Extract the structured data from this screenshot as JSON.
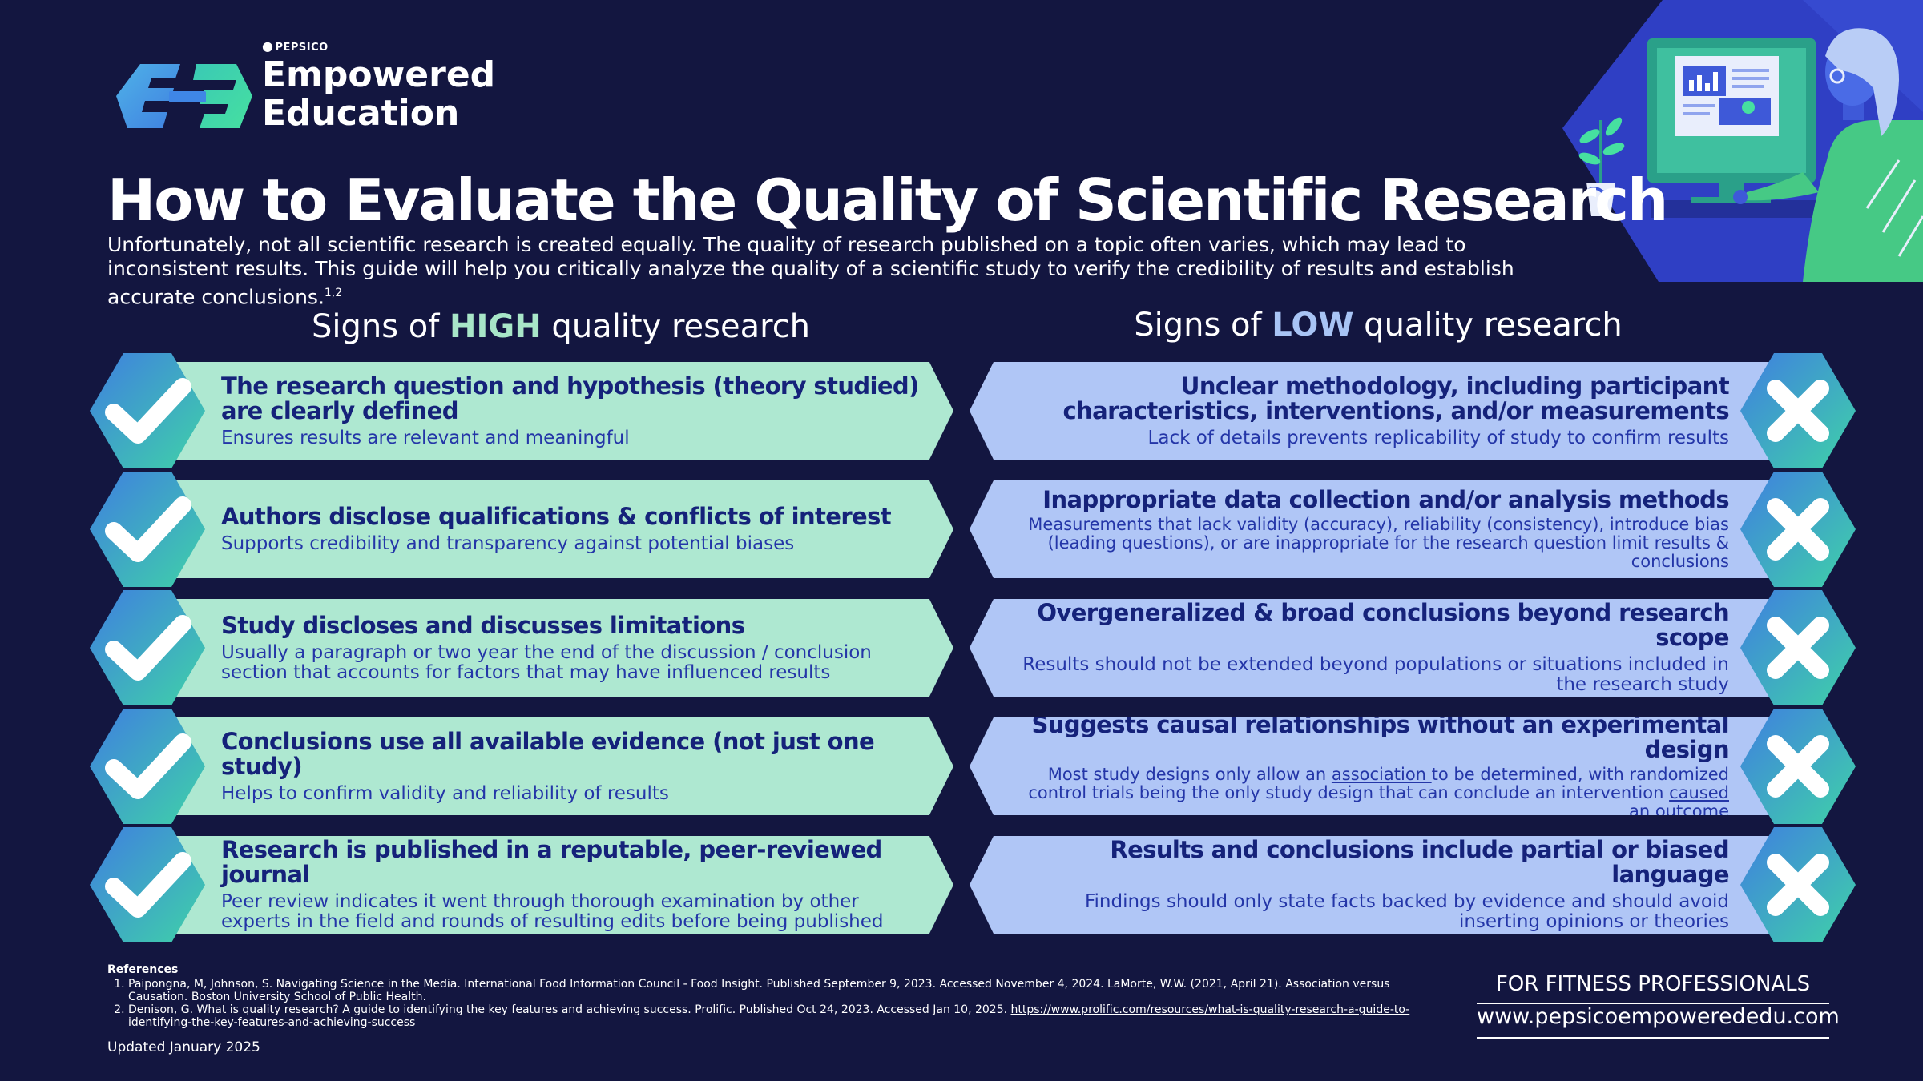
{
  "brand": {
    "company": "PEPSICO",
    "name_line1": "Empowered",
    "name_line2": "Education"
  },
  "header": {
    "title": "How to Evaluate the Quality of Scientific Research",
    "intro": "Unfortunately, not all scientific research is created equally. The quality of research published on a topic often varies, which may lead to inconsistent results. This guide will help you critically analyze the quality of a scientific study to verify the credibility of results and establish accurate conclusions.",
    "intro_refs": "1,2"
  },
  "high_column": {
    "prefix": "Signs of ",
    "highlight": "HIGH",
    "suffix": " quality research",
    "items": [
      {
        "title": "The research question and hypothesis (theory studied) are clearly defined",
        "desc": "Ensures results are relevant and meaningful"
      },
      {
        "title": "Authors disclose qualifications & conflicts of interest",
        "desc": "Supports credibility and transparency against potential biases"
      },
      {
        "title": "Study discloses and discusses limitations",
        "desc": "Usually a paragraph or two year the end of the discussion / conclusion section that accounts for factors that may have influenced results"
      },
      {
        "title": "Conclusions use all available evidence (not just one study)",
        "desc": "Helps to confirm validity and reliability of results"
      },
      {
        "title": "Research is published in a reputable, peer-reviewed journal",
        "desc": "Peer review indicates it went through thorough examination by other experts in the field and rounds of resulting edits before being published"
      }
    ]
  },
  "low_column": {
    "prefix": "Signs of ",
    "highlight": "LOW",
    "suffix": " quality research",
    "items": [
      {
        "title": "Unclear methodology, including participant characteristics, interventions, and/or measurements",
        "desc": "Lack of details prevents replicability of study to confirm results"
      },
      {
        "title": "Inappropriate data collection and/or analysis methods",
        "desc": "Measurements that lack validity (accuracy), reliability (consistency), introduce bias (leading questions), or are inappropriate for the research question limit results & conclusions"
      },
      {
        "title": "Overgeneralized & broad conclusions beyond research scope",
        "desc": "Results should not be extended beyond populations or situations included in the research study"
      },
      {
        "title": "Suggests causal relationships without an experimental design",
        "desc_a": "Most study designs only allow an ",
        "desc_b": "association ",
        "desc_c": "to be determined, with randomized control trials being the only study design that can conclude an intervention ",
        "desc_d": "caused ",
        "desc_e": "an outcome"
      },
      {
        "title": "Results and conclusions include partial or biased language",
        "desc": "Findings should only state facts backed by evidence and should avoid inserting opinions or theories"
      }
    ]
  },
  "footer": {
    "refs_heading": "References",
    "ref1": "Paipongna, M, Johnson, S. Navigating Science in the Media. International Food Information Council - Food Insight. Published September 9, 2023. Accessed November 4, 2024. LaMorte, W.W. (2021, April 21). Association versus Causation. Boston University School of Public Health.",
    "ref2_text": "Denison, G. What is quality research? A guide to identifying the key features and achieving success. Prolific. Published Oct 24, 2023. Accessed Jan 10, 2025. ",
    "ref2_link": "https://www.prolific.com/resources/what-is-quality-research-a-guide-to-identifying-the-key-features-and-achieving-success",
    "updated": "Updated January 2025",
    "audience": "FOR FITNESS PROFESSIONALS",
    "website": "www.pepsicoempowerededu.com"
  },
  "icons": {
    "logo": "empowered-education-logo",
    "check": "check-icon",
    "cross": "x-icon"
  },
  "colors": {
    "background": "#131640",
    "high_card": "#aee8d1",
    "low_card": "#b0c6f6",
    "text_dark": "#15227a"
  }
}
